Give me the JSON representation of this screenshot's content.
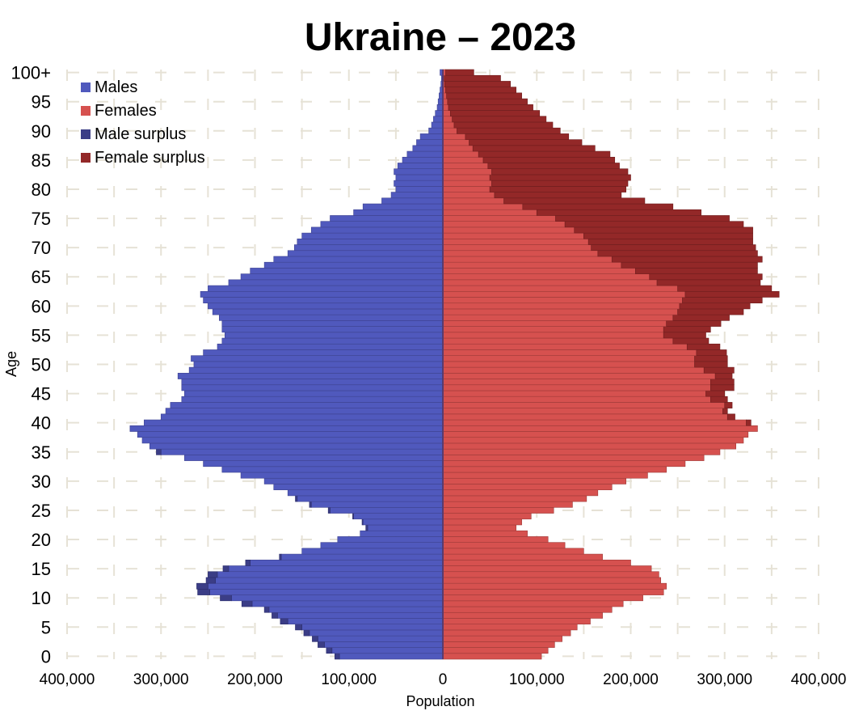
{
  "chart_data": {
    "type": "bar",
    "title": "Ukraine – 2023",
    "xlabel": "Population",
    "ylabel": "Age",
    "xlim": [
      -400000,
      400000
    ],
    "x_ticks": [
      "400,000",
      "300,000",
      "200,000",
      "100,000",
      "0",
      "100,000",
      "200,000",
      "300,000",
      "400,000"
    ],
    "y_ticks": [
      "0",
      "5",
      "10",
      "15",
      "20",
      "25",
      "30",
      "35",
      "40",
      "45",
      "50",
      "55",
      "60",
      "65",
      "70",
      "75",
      "80",
      "85",
      "90",
      "95",
      "100+"
    ],
    "grid": true,
    "legend_position": "top-left",
    "legend": [
      "Males",
      "Females",
      "Male surplus",
      "Female surplus"
    ],
    "colors": {
      "males": "#5059bd",
      "females": "#d6514f",
      "male_surplus": "#3b3d86",
      "female_surplus": "#932828"
    },
    "categories": [
      "0",
      "1",
      "2",
      "3",
      "4",
      "5",
      "6",
      "7",
      "8",
      "9",
      "10",
      "11",
      "12",
      "13",
      "14",
      "15",
      "16",
      "17",
      "18",
      "19",
      "20",
      "21",
      "22",
      "23",
      "24",
      "25",
      "26",
      "27",
      "28",
      "29",
      "30",
      "31",
      "32",
      "33",
      "34",
      "35",
      "36",
      "37",
      "38",
      "39",
      "40",
      "41",
      "42",
      "43",
      "44",
      "45",
      "46",
      "47",
      "48",
      "49",
      "50",
      "51",
      "52",
      "53",
      "54",
      "55",
      "56",
      "57",
      "58",
      "59",
      "60",
      "61",
      "62",
      "63",
      "64",
      "65",
      "66",
      "67",
      "68",
      "69",
      "70",
      "71",
      "72",
      "73",
      "74",
      "75",
      "76",
      "77",
      "78",
      "79",
      "80",
      "81",
      "82",
      "83",
      "84",
      "85",
      "86",
      "87",
      "88",
      "89",
      "90",
      "91",
      "92",
      "93",
      "94",
      "95",
      "96",
      "97",
      "98",
      "99",
      "100+"
    ],
    "series": [
      {
        "name": "Males",
        "values": [
          110000,
          118000,
          126000,
          133000,
          142000,
          150000,
          165000,
          176000,
          185000,
          203000,
          225000,
          248000,
          250000,
          242000,
          240000,
          228000,
          205000,
          172000,
          150000,
          130000,
          112000,
          88000,
          80000,
          85000,
          95000,
          120000,
          140000,
          155000,
          165000,
          180000,
          190000,
          215000,
          235000,
          255000,
          275000,
          300000,
          312000,
          320000,
          325000,
          333000,
          318000,
          300000,
          295000,
          290000,
          278000,
          275000,
          278000,
          278000,
          282000,
          270000,
          265000,
          268000,
          255000,
          240000,
          235000,
          232000,
          235000,
          235000,
          238000,
          245000,
          250000,
          255000,
          258000,
          250000,
          228000,
          215000,
          205000,
          190000,
          180000,
          165000,
          158000,
          155000,
          150000,
          140000,
          130000,
          120000,
          95000,
          85000,
          65000,
          55000,
          50000,
          52000,
          50000,
          52000,
          48000,
          43000,
          38000,
          32000,
          28000,
          24000,
          15000,
          12000,
          10000,
          8000,
          6000,
          5000,
          4000,
          3000,
          2000,
          1500,
          3000
        ]
      },
      {
        "name": "Females",
        "values": [
          105000,
          112000,
          119000,
          127000,
          136000,
          143000,
          157000,
          170000,
          180000,
          192000,
          213000,
          235000,
          238000,
          232000,
          230000,
          222000,
          200000,
          170000,
          150000,
          130000,
          112000,
          90000,
          78000,
          84000,
          94000,
          118000,
          138000,
          153000,
          165000,
          180000,
          195000,
          218000,
          238000,
          258000,
          278000,
          295000,
          312000,
          320000,
          325000,
          335000,
          323000,
          303000,
          298000,
          300000,
          285000,
          280000,
          285000,
          285000,
          290000,
          278000,
          268000,
          268000,
          270000,
          260000,
          245000,
          235000,
          235000,
          238000,
          245000,
          250000,
          252000,
          255000,
          258000,
          250000,
          228000,
          220000,
          205000,
          190000,
          180000,
          165000,
          158000,
          155000,
          150000,
          140000,
          130000,
          120000,
          100000,
          85000,
          65000,
          55000,
          50000,
          52000,
          50000,
          52000,
          48000,
          43000,
          38000,
          32000,
          28000,
          24000,
          15000,
          12000,
          10000,
          8000,
          6000,
          5000,
          4000,
          3000,
          2000,
          1500,
          3000
        ]
      },
      {
        "name": "Male surplus",
        "values": [
          5000,
          6000,
          7000,
          6000,
          6000,
          7000,
          8000,
          6000,
          5000,
          11000,
          12000,
          13000,
          12000,
          10000,
          10000,
          6000,
          5000,
          2000,
          0,
          0,
          0,
          0,
          2000,
          1000,
          1000,
          2000,
          2000,
          2000,
          0,
          0,
          0,
          0,
          0,
          0,
          0,
          5000,
          0,
          0,
          0,
          0,
          0,
          0,
          0,
          0,
          0,
          0,
          0,
          0,
          0,
          0,
          0,
          0,
          0,
          0,
          0,
          0,
          0,
          0,
          0,
          0,
          0,
          0,
          0,
          0,
          0,
          0,
          0,
          0,
          0,
          0,
          0,
          0,
          0,
          0,
          0,
          0,
          0,
          0,
          0,
          0,
          0,
          0,
          0,
          0,
          0,
          0,
          0,
          0,
          0,
          0,
          0,
          0,
          0,
          0,
          0,
          0,
          0,
          0,
          0,
          0,
          0
        ]
      },
      {
        "name": "Female surplus",
        "values": [
          0,
          0,
          0,
          0,
          0,
          0,
          0,
          0,
          0,
          0,
          0,
          0,
          0,
          0,
          0,
          0,
          0,
          0,
          0,
          0,
          0,
          0,
          0,
          0,
          0,
          0,
          0,
          0,
          0,
          0,
          0,
          0,
          0,
          0,
          0,
          0,
          0,
          0,
          0,
          0,
          5000,
          8000,
          5000,
          8000,
          18000,
          20000,
          25000,
          25000,
          18000,
          32000,
          35000,
          35000,
          32000,
          35000,
          38000,
          45000,
          50000,
          58000,
          60000,
          70000,
          75000,
          85000,
          100000,
          100000,
          110000,
          120000,
          130000,
          145000,
          160000,
          170000,
          175000,
          175000,
          180000,
          190000,
          190000,
          185000,
          175000,
          160000,
          150000,
          135000,
          145000,
          145000,
          150000,
          145000,
          140000,
          140000,
          140000,
          130000,
          120000,
          110000,
          110000,
          105000,
          100000,
          95000,
          90000,
          85000,
          80000,
          75000,
          70000,
          60000,
          30000
        ]
      }
    ]
  }
}
